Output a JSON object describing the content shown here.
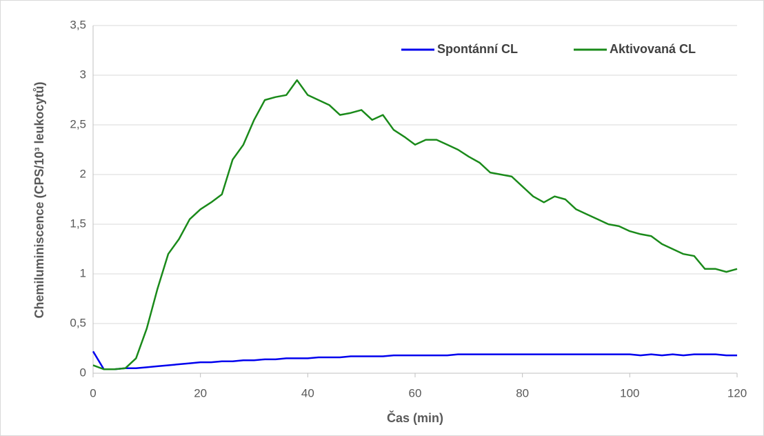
{
  "chart_data": {
    "type": "line",
    "xlabel": "Čas (min)",
    "ylabel": "Chemiluminiscence (CPS/10³ leukocytů)",
    "xlim": [
      0,
      120
    ],
    "xticks": [
      0,
      20,
      40,
      60,
      80,
      100,
      120
    ],
    "ylim": [
      0,
      3.5
    ],
    "yticks": [
      0,
      {
        "value": 0.5,
        "label": "0,5"
      },
      1,
      {
        "value": 1.5,
        "label": "1,5"
      },
      2,
      {
        "value": 2.5,
        "label": "2,5"
      },
      3,
      {
        "value": 3.5,
        "label": "3,5"
      }
    ],
    "grid": true,
    "legend": "top-right",
    "x": [
      0,
      2,
      4,
      6,
      8,
      10,
      12,
      14,
      16,
      18,
      20,
      22,
      24,
      26,
      28,
      30,
      32,
      34,
      36,
      38,
      40,
      42,
      44,
      46,
      48,
      50,
      52,
      54,
      56,
      58,
      60,
      62,
      64,
      66,
      68,
      70,
      72,
      74,
      76,
      78,
      80,
      82,
      84,
      86,
      88,
      90,
      92,
      94,
      96,
      98,
      100,
      102,
      104,
      106,
      108,
      110,
      112,
      114,
      116,
      118,
      120
    ],
    "series": [
      {
        "name": "Spontánní CL",
        "color": "#0000ee",
        "values": [
          0.22,
          0.04,
          0.04,
          0.05,
          0.05,
          0.06,
          0.07,
          0.08,
          0.09,
          0.1,
          0.11,
          0.11,
          0.12,
          0.12,
          0.13,
          0.13,
          0.14,
          0.14,
          0.15,
          0.15,
          0.15,
          0.16,
          0.16,
          0.16,
          0.17,
          0.17,
          0.17,
          0.17,
          0.18,
          0.18,
          0.18,
          0.18,
          0.18,
          0.18,
          0.19,
          0.19,
          0.19,
          0.19,
          0.19,
          0.19,
          0.19,
          0.19,
          0.19,
          0.19,
          0.19,
          0.19,
          0.19,
          0.19,
          0.19,
          0.19,
          0.19,
          0.18,
          0.19,
          0.18,
          0.19,
          0.18,
          0.19,
          0.19,
          0.19,
          0.18,
          0.18
        ]
      },
      {
        "name": "Aktivovaná CL",
        "color": "#1a8a1a",
        "values": [
          0.08,
          0.04,
          0.04,
          0.05,
          0.15,
          0.45,
          0.85,
          1.2,
          1.35,
          1.55,
          1.65,
          1.72,
          1.8,
          2.15,
          2.3,
          2.55,
          2.75,
          2.78,
          2.8,
          2.95,
          2.8,
          2.75,
          2.7,
          2.6,
          2.62,
          2.65,
          2.55,
          2.6,
          2.45,
          2.38,
          2.3,
          2.35,
          2.35,
          2.3,
          2.25,
          2.18,
          2.12,
          2.02,
          2.0,
          1.98,
          1.88,
          1.78,
          1.72,
          1.78,
          1.75,
          1.65,
          1.6,
          1.55,
          1.5,
          1.48,
          1.43,
          1.4,
          1.38,
          1.3,
          1.25,
          1.2,
          1.18,
          1.05,
          1.05,
          1.02,
          1.05
        ]
      }
    ]
  }
}
